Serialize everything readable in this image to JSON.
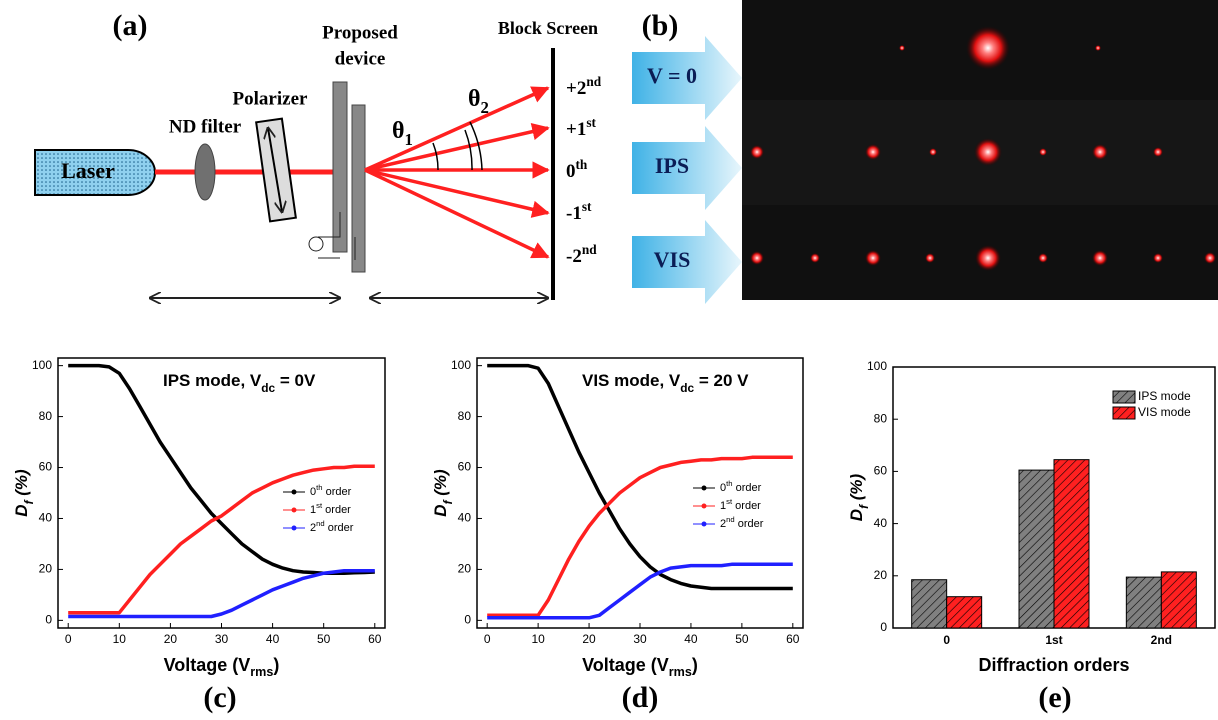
{
  "panel_a": {
    "label": "(a)",
    "laser": "Laser",
    "nd_filter": "ND filter",
    "polarizer": "Polarizer",
    "device": [
      "Proposed",
      "device"
    ],
    "screen": "Block Screen",
    "theta1": {
      "main": "θ",
      "sub": "1"
    },
    "theta2": {
      "main": "θ",
      "sub": "2"
    },
    "orders": [
      {
        "main": "+2",
        "sup": "nd"
      },
      {
        "main": "+1",
        "sup": "st"
      },
      {
        "main": "0",
        "sup": "th"
      },
      {
        "main": "-1",
        "sup": "st"
      },
      {
        "main": "-2",
        "sup": "nd"
      }
    ]
  },
  "panel_b": {
    "label": "(b)",
    "rows": [
      "V = 0",
      "IPS",
      "VIS"
    ]
  },
  "chart_data": [
    {
      "type": "line",
      "panel_label": "(c)",
      "annotation": {
        "main": "IPS mode, V",
        "sub": "dc",
        "rest": " = 0V"
      },
      "x_label": {
        "main": "Voltage (V",
        "sub": "rms",
        "rest": ")"
      },
      "y_label": {
        "main": "D",
        "sub": "f",
        "rest": " (%)"
      },
      "x": [
        0,
        2,
        4,
        6,
        8,
        10,
        12,
        14,
        16,
        18,
        20,
        22,
        24,
        26,
        28,
        30,
        32,
        34,
        36,
        38,
        40,
        42,
        44,
        46,
        48,
        50,
        52,
        54,
        56,
        58,
        60
      ],
      "series": [
        {
          "name": {
            "main": "0",
            "sup": "th",
            "rest": " order"
          },
          "color": "#000000",
          "values": [
            100,
            100,
            100,
            100,
            99.5,
            97,
            91,
            84,
            77,
            70,
            64,
            58,
            52,
            47,
            42,
            38,
            34,
            30,
            27,
            24,
            22,
            20.5,
            19.5,
            19,
            18.8,
            18.5,
            18.5,
            18.5,
            18.7,
            18.8,
            19
          ]
        },
        {
          "name": {
            "main": "1",
            "sup": "st",
            "rest": " order"
          },
          "color": "#ff2020",
          "values": [
            3,
            3,
            3,
            3,
            3,
            3,
            8,
            13,
            18,
            22,
            26,
            30,
            33,
            36,
            39,
            41,
            44,
            47,
            50,
            52,
            54,
            55.5,
            57,
            58,
            59,
            59.5,
            60,
            60,
            60.5,
            60.5,
            60.5
          ]
        },
        {
          "name": {
            "main": "2",
            "sup": "nd",
            "rest": " order"
          },
          "color": "#2020ff",
          "values": [
            1.5,
            1.5,
            1.5,
            1.5,
            1.5,
            1.5,
            1.5,
            1.5,
            1.5,
            1.5,
            1.5,
            1.5,
            1.5,
            1.5,
            1.5,
            2.5,
            4,
            6,
            8,
            10,
            12,
            13.5,
            15,
            16.5,
            17.5,
            18.5,
            19,
            19.5,
            19.5,
            19.5,
            19.5
          ]
        }
      ],
      "xlim": [
        -2,
        62
      ],
      "xticks": [
        0,
        10,
        20,
        30,
        40,
        50,
        60
      ],
      "ylim": [
        -3,
        103
      ],
      "yticks": [
        0,
        20,
        40,
        60,
        80,
        100
      ]
    },
    {
      "type": "line",
      "panel_label": "(d)",
      "annotation": {
        "main": "VIS mode, V",
        "sub": "dc",
        "rest": " = 20 V"
      },
      "x_label": {
        "main": "Voltage (V",
        "sub": "rms",
        "rest": ")"
      },
      "y_label": {
        "main": "D",
        "sub": "f",
        "rest": " (%)"
      },
      "x": [
        0,
        2,
        4,
        6,
        8,
        10,
        12,
        14,
        16,
        18,
        20,
        22,
        24,
        26,
        28,
        30,
        32,
        34,
        36,
        38,
        40,
        42,
        44,
        46,
        48,
        50,
        52,
        54,
        56,
        58,
        60
      ],
      "series": [
        {
          "name": {
            "main": "0",
            "sup": "th",
            "rest": " order"
          },
          "color": "#000000",
          "values": [
            100,
            100,
            100,
            100,
            100,
            99,
            93,
            84,
            75,
            66,
            58,
            50,
            43,
            36,
            30,
            25,
            21,
            18,
            16,
            14.5,
            13.5,
            13,
            12.5,
            12.5,
            12.5,
            12.5,
            12.5,
            12.5,
            12.5,
            12.5,
            12.5
          ]
        },
        {
          "name": {
            "main": "1",
            "sup": "st",
            "rest": " order"
          },
          "color": "#ff2020",
          "values": [
            2,
            2,
            2,
            2,
            2,
            2,
            8,
            16,
            24,
            31,
            37,
            42,
            46,
            50,
            53,
            56,
            58,
            60,
            61,
            62,
            62.5,
            63,
            63,
            63.5,
            63.5,
            63.5,
            64,
            64,
            64,
            64,
            64
          ]
        },
        {
          "name": {
            "main": "2",
            "sup": "nd",
            "rest": " order"
          },
          "color": "#2020ff",
          "values": [
            1,
            1,
            1,
            1,
            1,
            1,
            1,
            1,
            1,
            1,
            1,
            2,
            5,
            8,
            11,
            14,
            17,
            19,
            20.5,
            21,
            21.5,
            21.5,
            21.5,
            21.5,
            22,
            22,
            22,
            22,
            22,
            22,
            22
          ]
        }
      ],
      "xlim": [
        -2,
        62
      ],
      "xticks": [
        0,
        10,
        20,
        30,
        40,
        50,
        60
      ],
      "ylim": [
        -3,
        103
      ],
      "yticks": [
        0,
        20,
        40,
        60,
        80,
        100
      ]
    },
    {
      "type": "bar",
      "panel_label": "(e)",
      "x_label": "Diffraction orders",
      "y_label": {
        "main": "D",
        "sub": "f",
        "rest": " (%)"
      },
      "categories": [
        "0",
        "1st",
        "2nd"
      ],
      "series": [
        {
          "name": "IPS mode",
          "color": "#808080",
          "values": [
            18.5,
            60.5,
            19.5
          ]
        },
        {
          "name": "VIS mode",
          "color": "#ff2020",
          "values": [
            12,
            64.5,
            21.5
          ]
        }
      ],
      "ylim": [
        0,
        100
      ],
      "yticks": [
        0,
        20,
        40,
        60,
        80,
        100
      ],
      "hatch": true
    }
  ]
}
